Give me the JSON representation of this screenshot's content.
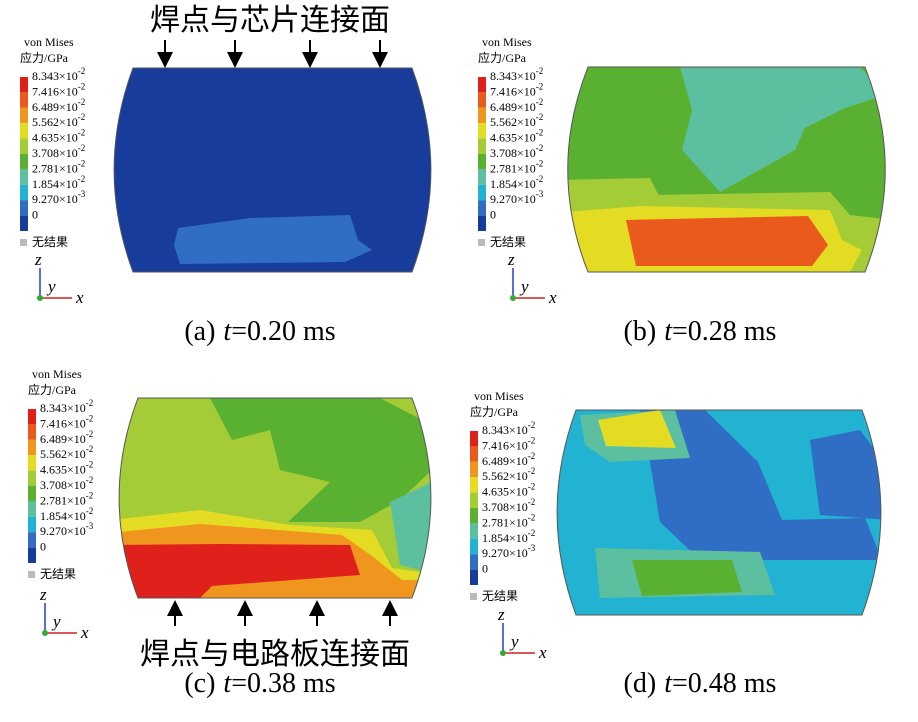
{
  "annotations": {
    "top": "焊点与芯片连接面",
    "bottom": "焊点与电路板连接面"
  },
  "legend": {
    "title": "von Mises",
    "unit": "应力/GPa",
    "levels": [
      {
        "mantissa": "8.343×10",
        "exponent": "-2"
      },
      {
        "mantissa": "7.416×10",
        "exponent": "-2"
      },
      {
        "mantissa": "6.489×10",
        "exponent": "-2"
      },
      {
        "mantissa": "5.562×10",
        "exponent": "-2"
      },
      {
        "mantissa": "4.635×10",
        "exponent": "-2"
      },
      {
        "mantissa": "3.708×10",
        "exponent": "-2"
      },
      {
        "mantissa": "2.781×10",
        "exponent": "-2"
      },
      {
        "mantissa": "1.854×10",
        "exponent": "-2"
      },
      {
        "mantissa": "9.270×10",
        "exponent": "-3"
      },
      {
        "mantissa": "0"
      }
    ],
    "colors": [
      "#e0201a",
      "#ea5a1c",
      "#f0961e",
      "#e4dc22",
      "#a4cc36",
      "#5ab030",
      "#5cc0a0",
      "#22b2d2",
      "#2f6ec4",
      "#173c9c"
    ],
    "no_result": "无结果"
  },
  "axes": {
    "z": "z",
    "y": "y",
    "x": "x"
  },
  "panels": [
    {
      "label": "(a)",
      "variable": "t",
      "value": "=0.20 ms"
    },
    {
      "label": "(b)",
      "variable": "t",
      "value": "=0.28 ms"
    },
    {
      "label": "(c)",
      "variable": "t",
      "value": "=0.38 ms"
    },
    {
      "label": "(d)",
      "variable": "t",
      "value": "=0.48 ms"
    }
  ]
}
